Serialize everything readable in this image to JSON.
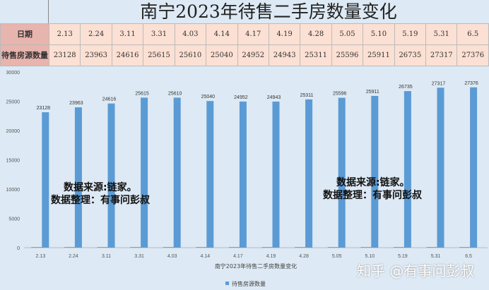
{
  "title": "南宁2023年待售二手房数量变化",
  "table": {
    "date_label": "日期",
    "count_label": "待售房源数量",
    "dates": [
      "2.13",
      "2.24",
      "3.11",
      "3.31",
      "4.03",
      "4.14",
      "4.17",
      "4.19",
      "4.28",
      "5.05",
      "5.10",
      "5.19",
      "5.31",
      "6.5"
    ],
    "counts": [
      "23128",
      "23963",
      "24616",
      "25615",
      "25610",
      "25040",
      "24952",
      "24943",
      "25311",
      "25596",
      "25911",
      "26735",
      "27317",
      "27376"
    ]
  },
  "notes": {
    "left1": "数据来源:链家。",
    "left2": "数据整理：有事问彭叔",
    "right1": "数据来源:链家。",
    "right2": "数据整理：有事问彭叔"
  },
  "watermark": "知乎 @有事问彭叔",
  "chart_data": {
    "type": "bar",
    "title": "南宁2023年待售二手房数量变化",
    "categories": [
      "2.13",
      "2.24",
      "3.11",
      "3.31",
      "4.03",
      "4.14",
      "4.17",
      "4.19",
      "4.28",
      "5.05",
      "5.10",
      "5.19",
      "5.31",
      "6.5"
    ],
    "series": [
      {
        "name": "待售房源数量",
        "values": [
          23128,
          23963,
          24616,
          25615,
          25610,
          25040,
          24952,
          24943,
          25311,
          25596,
          25911,
          26735,
          27317,
          27376
        ]
      }
    ],
    "yticks": [
      0,
      5000,
      10000,
      15000,
      20000,
      25000,
      30000
    ],
    "ylim": [
      0,
      30000
    ],
    "legend": "bottom",
    "color": "#5b9bd5"
  }
}
